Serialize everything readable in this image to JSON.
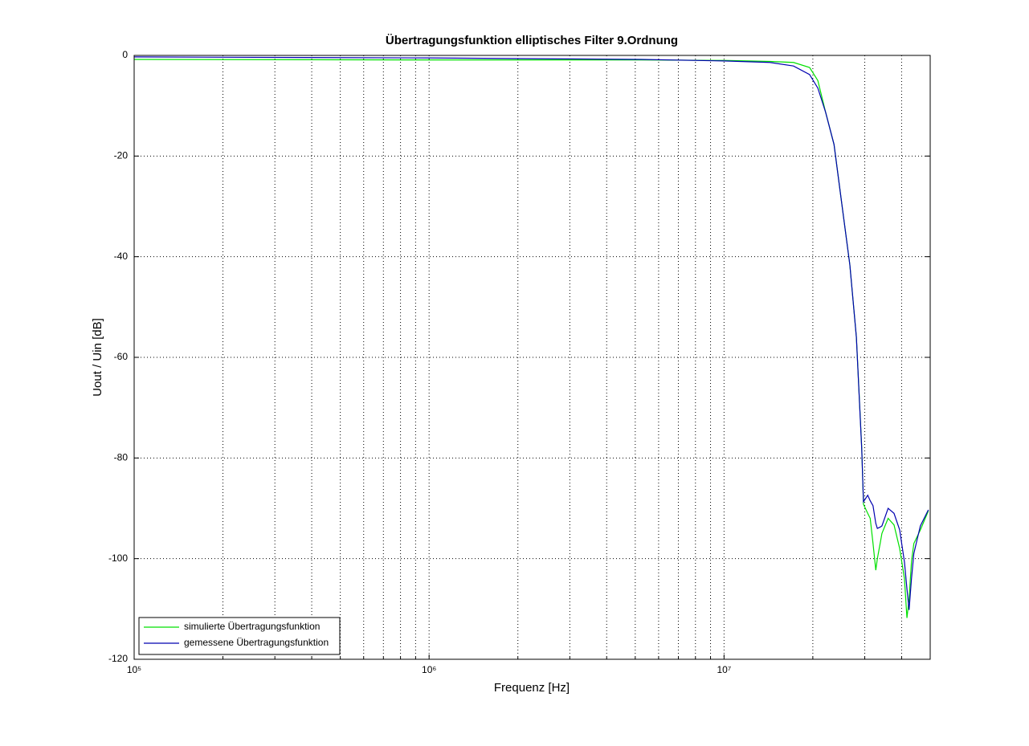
{
  "chart_data": {
    "type": "line",
    "title": "Übertragungsfunktion elliptisches Filter 9.Ordnung",
    "x_label": "Frequenz [Hz]",
    "y_label": "Uout / Uin [dB]",
    "x_scale": "log",
    "x": [
      100000,
      1000000,
      5250000,
      10000000,
      14300000,
      17200000,
      19500000,
      20800000,
      22100000,
      23600000,
      25000000,
      26700000,
      28100000,
      29300000,
      29700000,
      30700000,
      31300000,
      32000000,
      32700000,
      33100000,
      33900000,
      34300000,
      36000000,
      37700000,
      39400000,
      40900000,
      41700000,
      42400000,
      43200000,
      44000000,
      46300000,
      49300000
    ],
    "series": [
      {
        "name": "simulierte Übertragungsfunktion",
        "color": "#00e000",
        "values": [
          -0.8,
          -0.9,
          -0.9,
          -1.0,
          -1.2,
          -1.4,
          -2.4,
          -5,
          -11.3,
          -17.7,
          -28.9,
          -41.6,
          -56,
          -78,
          -89.2,
          -91,
          -92,
          -97,
          -102.3,
          -100,
          -96.7,
          -95,
          -92,
          -93.3,
          -98,
          -104,
          -111.8,
          -108,
          -100.6,
          -97,
          -94.3,
          -90.5
        ]
      },
      {
        "name": "gemessene Übertragungsfunktion",
        "color": "#0000b0",
        "values": [
          -0.3,
          -0.5,
          -0.8,
          -1.1,
          -1.4,
          -2.1,
          -3.8,
          -6.5,
          -11.3,
          -17.7,
          -28.9,
          -41.6,
          -56,
          -78.3,
          -88.7,
          -87.4,
          -88.5,
          -89.5,
          -93,
          -94,
          -93.7,
          -93.5,
          -90,
          -91,
          -94.3,
          -100.7,
          -106,
          -110.2,
          -104,
          -99,
          -93.5,
          -90.3
        ]
      }
    ],
    "xlim": [
      100000,
      50000000
    ],
    "ylim": [
      -120,
      0
    ],
    "xticks": [
      {
        "value": 100000,
        "label": "10⁵"
      },
      {
        "value": 1000000,
        "label": "10⁶"
      },
      {
        "value": 10000000,
        "label": "10⁷"
      }
    ],
    "xminorticks": [
      200000,
      300000,
      400000,
      500000,
      600000,
      700000,
      800000,
      900000,
      2000000,
      3000000,
      4000000,
      5000000,
      6000000,
      7000000,
      8000000,
      9000000,
      20000000,
      30000000,
      40000000
    ],
    "yticks": [
      -120,
      -100,
      -80,
      -60,
      -40,
      -20,
      0
    ],
    "grid": true,
    "legend": "lower left"
  }
}
